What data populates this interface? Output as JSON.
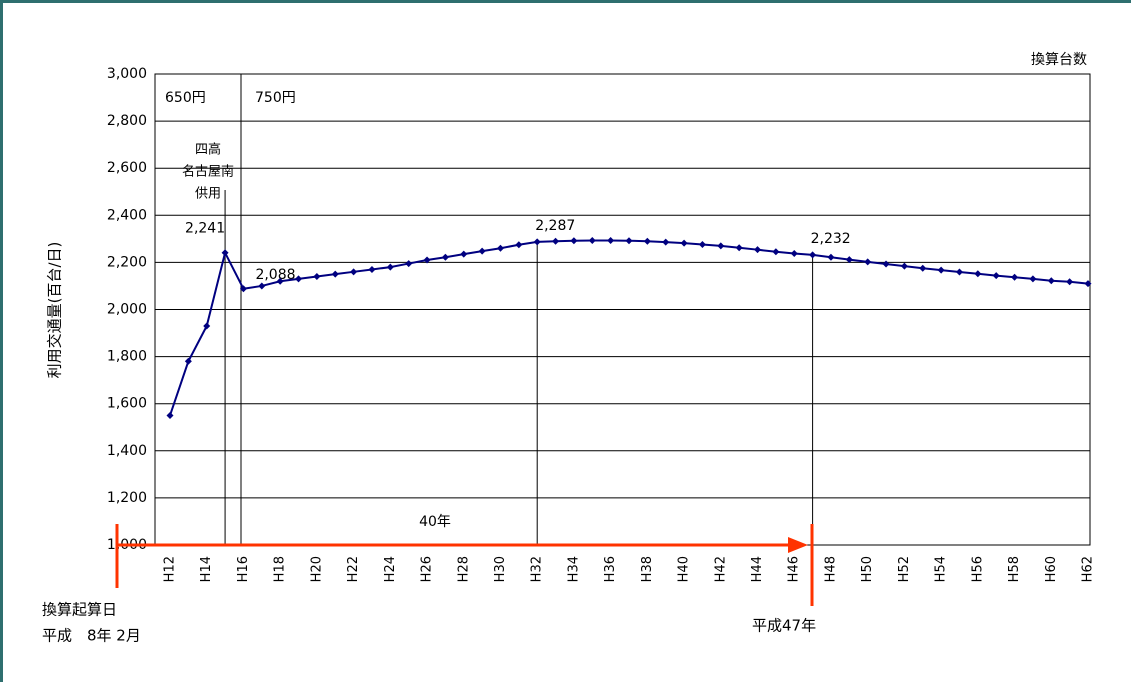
{
  "chart_data": {
    "type": "line",
    "y_label": "利用交通量(百台/日)",
    "unit_note": "換算台数",
    "categories": [
      "H12",
      null,
      "H14",
      null,
      "H16",
      null,
      "H18",
      null,
      "H20",
      null,
      "H22",
      null,
      "H24",
      null,
      "H26",
      null,
      "H28",
      null,
      "H30",
      null,
      "H32",
      null,
      "H34",
      null,
      "H36",
      null,
      "H38",
      null,
      "H40",
      null,
      "H42",
      null,
      "H44",
      null,
      "H46",
      null,
      "H48",
      null,
      "H50",
      null,
      "H52",
      null,
      "H54",
      null,
      "H56",
      null,
      "H58",
      null,
      "H60",
      null,
      "H62"
    ],
    "series": [
      {
        "color": "#000080",
        "values": [
          1550,
          1780,
          1930,
          2241,
          2088,
          2100,
          2120,
          2130,
          2140,
          2150,
          2160,
          2170,
          2180,
          2195,
          2210,
          2222,
          2235,
          2248,
          2260,
          2275,
          2287,
          2290,
          2292,
          2293,
          2293,
          2292,
          2290,
          2286,
          2282,
          2276,
          2270,
          2262,
          2254,
          2245,
          2238,
          2232,
          2222,
          2212,
          2202,
          2193,
          2184,
          2175,
          2167,
          2159,
          2152,
          2144,
          2137,
          2130,
          2122,
          2118,
          2110
        ],
        "value_labels": [
          null,
          null,
          null,
          "2,241",
          "2,088",
          null,
          null,
          null,
          null,
          null,
          null,
          null,
          null,
          null,
          null,
          null,
          null,
          null,
          null,
          null,
          "2,287",
          null,
          null,
          null,
          null,
          null,
          null,
          null,
          null,
          null,
          null,
          null,
          null,
          null,
          null,
          "2,232",
          null,
          null,
          null,
          null,
          null,
          null,
          null,
          null,
          null,
          null,
          null,
          null,
          null,
          null,
          null
        ]
      }
    ],
    "ylim": [
      1000,
      3000
    ],
    "yticks": [
      {
        "value": 1000,
        "label": "1,000"
      },
      {
        "value": 1200,
        "label": "1,200"
      },
      {
        "value": 1400,
        "label": "1,400"
      },
      {
        "value": 1600,
        "label": "1,600"
      },
      {
        "value": 1800,
        "label": "1,800"
      },
      {
        "value": 2000,
        "label": "2,000"
      },
      {
        "value": 2200,
        "label": "2,200"
      },
      {
        "value": 2400,
        "label": "2,400"
      },
      {
        "value": 2600,
        "label": "2,600"
      },
      {
        "value": 2800,
        "label": "2,800"
      },
      {
        "value": 3000,
        "label": "3,000"
      }
    ],
    "grid": true,
    "annotations": {
      "price_before": "650円",
      "price_after": "750円",
      "opening": [
        "四高",
        "名古屋南",
        "供用"
      ],
      "period": "40年",
      "start_title": "換算起算日",
      "start_date": "平成　8年 2月",
      "end_date": "平成47年"
    }
  }
}
